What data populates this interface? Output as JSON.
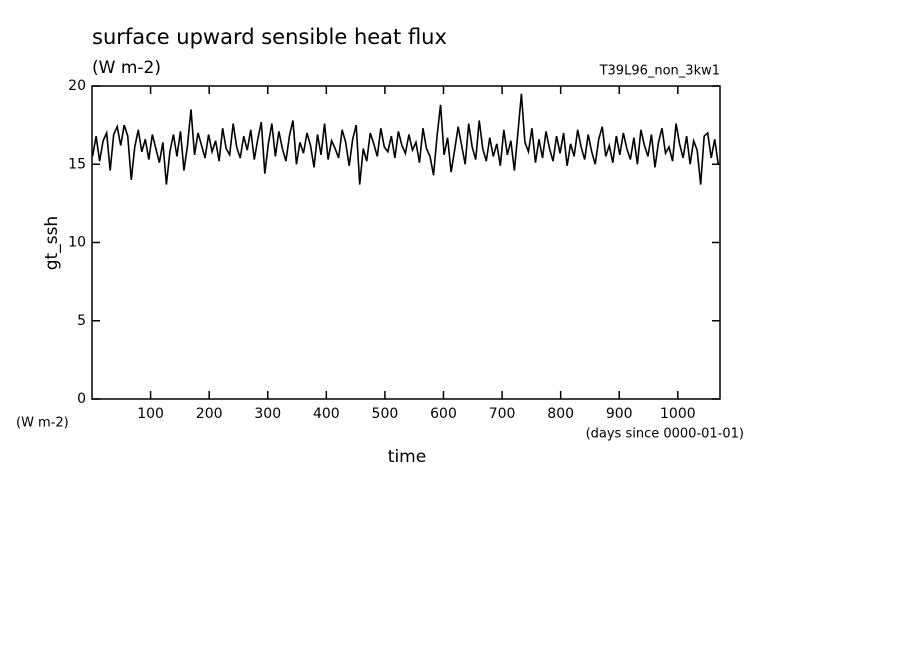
{
  "chart_data": {
    "type": "line",
    "title": "surface upward sensible heat flux",
    "subtitle": "(W m-2)",
    "annotation": "T39L96_non_3kw1",
    "y_label": "gt_ssh",
    "y_units": "(W m-2)",
    "x_label": "time",
    "x_units": "(days since 0000-01-01)",
    "xlim": [
      0,
      1072
    ],
    "ylim": [
      0,
      20
    ],
    "xticks": [
      100,
      200,
      300,
      400,
      500,
      600,
      700,
      800,
      900,
      1000
    ],
    "yticks": [
      0,
      5,
      10,
      15,
      20
    ],
    "color": "#000000",
    "x": [
      1,
      7,
      13,
      19,
      25,
      31,
      37,
      43,
      49,
      55,
      61,
      67,
      73,
      79,
      85,
      91,
      97,
      103,
      109,
      115,
      121,
      127,
      133,
      139,
      145,
      151,
      157,
      163,
      169,
      175,
      181,
      187,
      193,
      199,
      205,
      211,
      217,
      223,
      229,
      235,
      241,
      247,
      253,
      259,
      265,
      271,
      277,
      283,
      289,
      295,
      301,
      307,
      313,
      319,
      325,
      331,
      337,
      343,
      349,
      355,
      361,
      367,
      373,
      379,
      385,
      391,
      397,
      403,
      409,
      415,
      421,
      427,
      433,
      439,
      445,
      451,
      457,
      463,
      469,
      475,
      481,
      487,
      493,
      499,
      505,
      511,
      517,
      523,
      529,
      535,
      541,
      547,
      553,
      559,
      565,
      571,
      577,
      583,
      589,
      595,
      601,
      607,
      613,
      619,
      625,
      631,
      637,
      643,
      649,
      655,
      661,
      667,
      673,
      679,
      685,
      691,
      697,
      703,
      709,
      715,
      721,
      727,
      733,
      739,
      745,
      751,
      757,
      763,
      769,
      775,
      781,
      787,
      793,
      799,
      805,
      811,
      817,
      823,
      829,
      835,
      841,
      847,
      853,
      859,
      865,
      871,
      877,
      883,
      889,
      895,
      901,
      907,
      913,
      919,
      925,
      931,
      937,
      943,
      949,
      955,
      961,
      967,
      973,
      979,
      985,
      991,
      997,
      1003,
      1009,
      1015,
      1021,
      1027,
      1033,
      1039,
      1045,
      1051,
      1057,
      1063,
      1069
    ],
    "values": [
      15.5,
      16.8,
      15.2,
      16.5,
      17.0,
      14.6,
      16.9,
      17.4,
      16.2,
      17.5,
      16.8,
      14.0,
      16.1,
      17.2,
      15.8,
      16.6,
      15.3,
      16.9,
      16.0,
      15.1,
      16.4,
      13.7,
      15.8,
      16.9,
      15.5,
      17.1,
      14.6,
      16.2,
      18.5,
      15.6,
      17.0,
      16.2,
      15.4,
      16.9,
      15.8,
      16.5,
      15.2,
      17.3,
      16.0,
      15.6,
      17.6,
      16.1,
      15.4,
      16.8,
      15.9,
      17.2,
      15.3,
      16.6,
      17.7,
      14.4,
      16.3,
      17.6,
      15.5,
      17.1,
      16.0,
      15.2,
      16.8,
      17.8,
      15.0,
      16.4,
      15.7,
      17.0,
      16.2,
      14.8,
      16.9,
      15.6,
      17.6,
      15.3,
      16.5,
      16.0,
      15.4,
      17.2,
      16.4,
      14.9,
      16.6,
      17.5,
      13.7,
      16.0,
      15.2,
      17.0,
      16.3,
      15.5,
      17.3,
      16.1,
      15.8,
      16.8,
      15.4,
      17.1,
      16.2,
      15.7,
      16.9,
      15.9,
      16.4,
      15.1,
      17.3,
      16.0,
      15.5,
      14.3,
      16.8,
      18.8,
      15.6,
      16.7,
      14.5,
      15.9,
      17.4,
      16.2,
      15.0,
      17.6,
      16.1,
      15.3,
      17.8,
      16.0,
      15.2,
      16.7,
      15.5,
      16.3,
      14.9,
      17.2,
      15.6,
      16.5,
      14.6,
      17.0,
      19.5,
      16.4,
      15.8,
      17.3,
      15.1,
      16.6,
      15.4,
      17.1,
      16.0,
      15.2,
      16.8,
      15.7,
      17.0,
      14.9,
      16.3,
      15.5,
      17.2,
      16.1,
      15.3,
      16.9,
      15.8,
      15.0,
      16.6,
      17.4,
      15.5,
      16.2,
      15.1,
      16.8,
      15.6,
      17.0,
      16.0,
      15.3,
      16.7,
      15.0,
      17.2,
      16.2,
      15.5,
      16.9,
      14.8,
      16.4,
      17.3,
      15.7,
      16.1,
      15.2,
      17.6,
      16.3,
      15.4,
      16.8,
      15.0,
      16.5,
      15.9,
      13.7,
      16.8,
      17.0,
      15.4,
      16.6,
      15.0
    ]
  }
}
